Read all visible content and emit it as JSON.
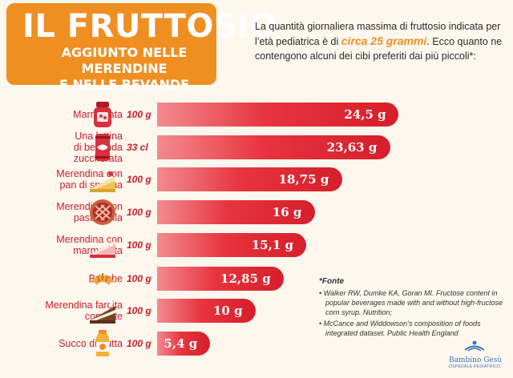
{
  "header": {
    "title": "IL FRUTTOSIO",
    "subtitle_line1": "AGGIUNTO NELLE MERENDINE",
    "subtitle_line2": "E NELLE BEVANDE"
  },
  "intro": {
    "part1": "La quantità giornaliera massima di fruttosio indicata per l’età pediatrica è di ",
    "highlight": "circa 25 grammi",
    "part2": ". Ecco quanto ne contengono alcuni dei cibi preferiti dai più piccoli*:"
  },
  "colors": {
    "accent_orange": "#ef8f22",
    "bar_red": "#e8343f",
    "label_red": "#c9202c",
    "logo_blue": "#3b72b8"
  },
  "chart_data": {
    "type": "bar",
    "orientation": "horizontal",
    "unit": "g",
    "categories": [
      "Marmellata",
      "Una lattina di bevanda zuccherata",
      "Merendina con pan di spagna",
      "Merendina con pasta frolla",
      "Merendina con marmellata",
      "Brioche",
      "Merendina farcita con latte",
      "Succo di frutta"
    ],
    "category_lines": [
      [
        "Marmellata"
      ],
      [
        "Una lattina",
        "di bevanda",
        "zuccherata"
      ],
      [
        "Merendina con",
        "pan di spagna"
      ],
      [
        "Merendina con",
        "pasta frolla"
      ],
      [
        "Merendina con",
        "marmellata"
      ],
      [
        "Brioche"
      ],
      [
        "Merendina farcita",
        "con latte"
      ],
      [
        "Succo di frutta"
      ]
    ],
    "quantities": [
      "100 g",
      "33 cl",
      "100 g",
      "100 g",
      "100 g",
      "100 g",
      "100 g",
      "100 g"
    ],
    "icons": [
      "jam-jar-icon",
      "soda-can-icon",
      "sponge-cake-icon",
      "tart-icon",
      "jam-cake-icon",
      "croissant-icon",
      "chocolate-cake-icon",
      "juice-bottle-icon"
    ],
    "values": [
      24.5,
      23.63,
      18.75,
      16,
      15.1,
      12.85,
      10,
      5.4
    ],
    "value_labels": [
      "24,5 g",
      "23,63 g",
      "18,75 g",
      "16 g",
      "15,1 g",
      "12,85 g",
      "10 g",
      "5,4 g"
    ]
  },
  "sources": {
    "title": "*Fonte",
    "items": [
      "Walker RW, Dumke KA, Goran MI. Fructose content in popular beverages made with and without high-fructose corn syrup. Nutrition;",
      "McCance and Widdowson’s composition of foods integrated dataset. Public Health England"
    ]
  },
  "logo": {
    "name": "Bambino Gesù",
    "sub": "OSPEDALE PEDIATRICO"
  }
}
